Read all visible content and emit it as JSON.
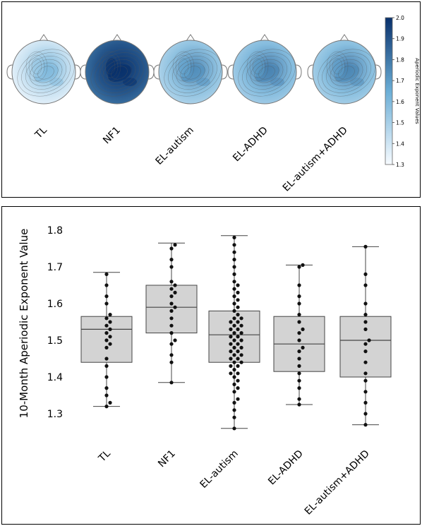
{
  "topomaps": {
    "groups": [
      "TL",
      "NF1",
      "EL-autism",
      "EL-ADHD",
      "EL-autism+ADHD"
    ],
    "mean_levels": [
      1.38,
      1.86,
      1.52,
      1.55,
      1.54
    ]
  },
  "colorbar": {
    "label": "Aperiodic Exponent Values",
    "ticks": [
      "2.0",
      "1.9",
      "1.8",
      "1.7",
      "1.6",
      "1.5",
      "1.4",
      "1.3"
    ],
    "colors": {
      "low": "#f7fbff",
      "mid": "#6baed6",
      "high": "#08306b"
    }
  },
  "chart_data": {
    "type": "box",
    "categories": [
      "TL",
      "NF1",
      "EL-autism",
      "EL-ADHD",
      "EL-autism+ADHD"
    ],
    "ylabel": "10-Month Aperiodic Exponent Value",
    "xlabel": "",
    "ylim": [
      1.25,
      1.82
    ],
    "yticks": [
      "1.8",
      "1.7",
      "1.6",
      "1.5",
      "1.4",
      "1.3"
    ],
    "box_color": "#d3d3d3",
    "boxes": [
      {
        "min": 1.32,
        "q1": 1.44,
        "median": 1.53,
        "q3": 1.565,
        "max": 1.685
      },
      {
        "min": 1.385,
        "q1": 1.52,
        "median": 1.59,
        "q3": 1.65,
        "max": 1.765
      },
      {
        "min": 1.26,
        "q1": 1.44,
        "median": 1.515,
        "q3": 1.58,
        "max": 1.785
      },
      {
        "min": 1.325,
        "q1": 1.415,
        "median": 1.49,
        "q3": 1.565,
        "max": 1.705
      },
      {
        "min": 1.27,
        "q1": 1.4,
        "median": 1.5,
        "q3": 1.565,
        "max": 1.755
      }
    ],
    "points": [
      [
        1.32,
        1.33,
        1.35,
        1.37,
        1.4,
        1.43,
        1.45,
        1.48,
        1.49,
        1.5,
        1.51,
        1.52,
        1.53,
        1.54,
        1.55,
        1.56,
        1.57,
        1.6,
        1.62,
        1.65,
        1.68
      ],
      [
        1.385,
        1.44,
        1.46,
        1.49,
        1.5,
        1.52,
        1.54,
        1.56,
        1.58,
        1.59,
        1.6,
        1.62,
        1.63,
        1.64,
        1.65,
        1.66,
        1.7,
        1.72,
        1.75,
        1.76
      ],
      [
        1.26,
        1.29,
        1.31,
        1.33,
        1.34,
        1.36,
        1.37,
        1.38,
        1.39,
        1.4,
        1.41,
        1.41,
        1.42,
        1.43,
        1.43,
        1.44,
        1.44,
        1.45,
        1.45,
        1.46,
        1.46,
        1.47,
        1.47,
        1.48,
        1.48,
        1.49,
        1.49,
        1.5,
        1.5,
        1.51,
        1.51,
        1.52,
        1.52,
        1.53,
        1.53,
        1.54,
        1.54,
        1.55,
        1.55,
        1.56,
        1.56,
        1.57,
        1.58,
        1.59,
        1.6,
        1.61,
        1.62,
        1.63,
        1.64,
        1.65,
        1.66,
        1.68,
        1.7,
        1.72,
        1.74,
        1.76,
        1.78
      ],
      [
        1.325,
        1.34,
        1.37,
        1.39,
        1.41,
        1.43,
        1.45,
        1.47,
        1.48,
        1.5,
        1.52,
        1.53,
        1.55,
        1.57,
        1.6,
        1.62,
        1.65,
        1.7,
        1.705
      ],
      [
        1.27,
        1.3,
        1.33,
        1.36,
        1.39,
        1.41,
        1.44,
        1.47,
        1.49,
        1.5,
        1.53,
        1.55,
        1.57,
        1.6,
        1.65,
        1.68,
        1.755
      ]
    ]
  }
}
